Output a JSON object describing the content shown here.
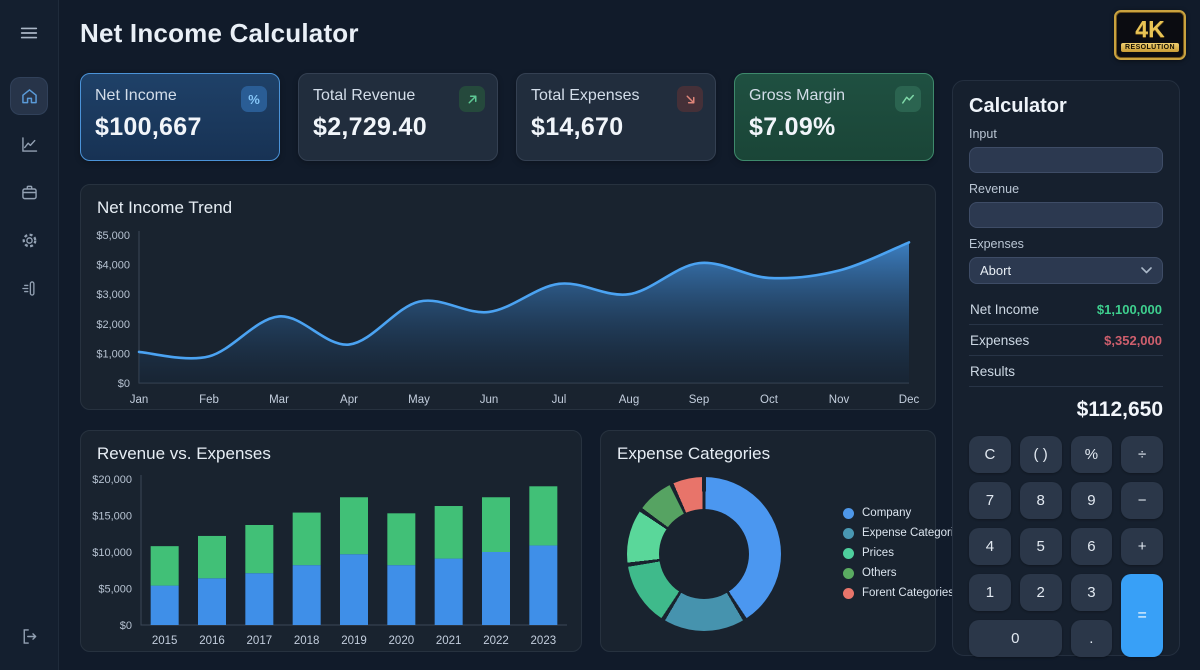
{
  "header": {
    "title": "Net Income Calculator",
    "badge_top": "4K",
    "badge_bottom": "RESOLUTION"
  },
  "sidebar": {
    "items": [
      "menu",
      "home",
      "trends",
      "portfolio",
      "settings",
      "analytics",
      "logout"
    ]
  },
  "stats": [
    {
      "label": "Net Income",
      "value": "$100,667",
      "icon": "percent-icon",
      "variant": "blue"
    },
    {
      "label": "Total Revenue",
      "value": "$2,729.40",
      "icon": "arrow-up-right-icon",
      "variant": "default"
    },
    {
      "label": "Total Expenses",
      "value": "$14,670",
      "icon": "arrow-down-right-icon",
      "variant": "default"
    },
    {
      "label": "Gross Margin",
      "value": "$7.09%",
      "icon": "trend-icon",
      "variant": "green"
    }
  ],
  "calculator": {
    "title": "Calculator",
    "fields": [
      {
        "label": "Input",
        "type": "input",
        "value": ""
      },
      {
        "label": "Revenue",
        "type": "input",
        "value": ""
      },
      {
        "label": "Expenses",
        "type": "select",
        "value": "Abort"
      }
    ],
    "summary": [
      {
        "label": "Net Income",
        "value": "$1,100,000",
        "color": "#3ecf8e"
      },
      {
        "label": "Expenses",
        "value": "$,352,000",
        "color": "#cf5f6d"
      }
    ],
    "results_label": "Results",
    "result_value": "$112,650",
    "keys": [
      {
        "name": "clear",
        "label": "C"
      },
      {
        "name": "parentheses",
        "label": "( )"
      },
      {
        "name": "percent",
        "label": "%"
      },
      {
        "name": "divide",
        "label": "÷"
      },
      {
        "name": "7",
        "label": "7"
      },
      {
        "name": "8",
        "label": "8"
      },
      {
        "name": "9",
        "label": "9"
      },
      {
        "name": "minus",
        "label": "−"
      },
      {
        "name": "4",
        "label": "4"
      },
      {
        "name": "5",
        "label": "5"
      },
      {
        "name": "6",
        "label": "6"
      },
      {
        "name": "plus",
        "label": "+"
      },
      {
        "name": "1",
        "label": "1"
      },
      {
        "name": "2",
        "label": "2"
      },
      {
        "name": "3",
        "label": "3"
      },
      {
        "name": "equals",
        "label": "=",
        "accent": true,
        "rowspan": 2
      },
      {
        "name": "0",
        "label": "0",
        "colspan": 2
      },
      {
        "name": "decimal",
        "label": "."
      }
    ]
  },
  "chart_data": [
    {
      "id": "net-income-trend",
      "type": "area",
      "title": "Net Income Trend",
      "x": [
        "Jan",
        "Feb",
        "Mar",
        "Apr",
        "May",
        "Jun",
        "Jul",
        "Aug",
        "Sep",
        "Oct",
        "Nov",
        "Dec"
      ],
      "values": [
        1050,
        900,
        2250,
        1300,
        2750,
        2400,
        3350,
        3000,
        4050,
        3550,
        3800,
        4750
      ],
      "ylim": [
        0,
        5000
      ],
      "yticks": [
        "$0",
        "$1,000",
        "$2,000",
        "$3,000",
        "$4,000",
        "$5,000"
      ],
      "grid": false,
      "line_color": "#4ba3f2",
      "area_top": "#3e83c8",
      "area_bottom": "#16293f"
    },
    {
      "id": "revenue-vs-expenses",
      "type": "stacked-bar",
      "title": "Revenue vs. Expenses",
      "categories": [
        "2015",
        "2016",
        "2017",
        "2018",
        "2019",
        "2020",
        "2021",
        "2022",
        "2023"
      ],
      "series": [
        {
          "name": "Revenue",
          "color": "#3f8fe8",
          "values": [
            5400,
            6400,
            7100,
            8200,
            9700,
            8200,
            9100,
            10000,
            10900
          ]
        },
        {
          "name": "Expenses",
          "color": "#41c077",
          "values": [
            5400,
            5800,
            6600,
            7200,
            7800,
            7100,
            7200,
            7500,
            8100
          ]
        }
      ],
      "ylim": [
        0,
        20000
      ],
      "yticks": [
        "$0",
        "$5,000",
        "$10,000",
        "$15,000",
        "$20,000"
      ],
      "grid": false
    },
    {
      "id": "expense-categories",
      "type": "donut",
      "title": "Expense Categories",
      "segments": [
        {
          "label": "Company",
          "color": "#4b97f0",
          "start": 0,
          "end": 148,
          "pct": 41
        },
        {
          "label": "Expense Categories",
          "color": "#4693ae",
          "start": 148,
          "end": 212,
          "pct": 18
        },
        {
          "label": "Prices",
          "color": "#3fba8b",
          "start": 212,
          "end": 262,
          "pct": 14
        },
        {
          "label": "Prices",
          "color": "#5ad79a",
          "start": 262,
          "end": 305,
          "pct": 12
        },
        {
          "label": "Others",
          "color": "#56a362",
          "start": 305,
          "end": 335,
          "pct": 8
        },
        {
          "label": "Forent Categories",
          "color": "#e8746a",
          "start": 335,
          "end": 360,
          "pct": 7
        }
      ],
      "legend": [
        {
          "label": "Company",
          "color": "#4e97e8"
        },
        {
          "label": "Expense Categories",
          "color": "#4997b2"
        },
        {
          "label": "Prices",
          "color": "#4ecf9d"
        },
        {
          "label": "Others",
          "color": "#5aab61"
        },
        {
          "label": "Forent Categories",
          "color": "#e8756b"
        }
      ],
      "legend_position": "right"
    }
  ]
}
